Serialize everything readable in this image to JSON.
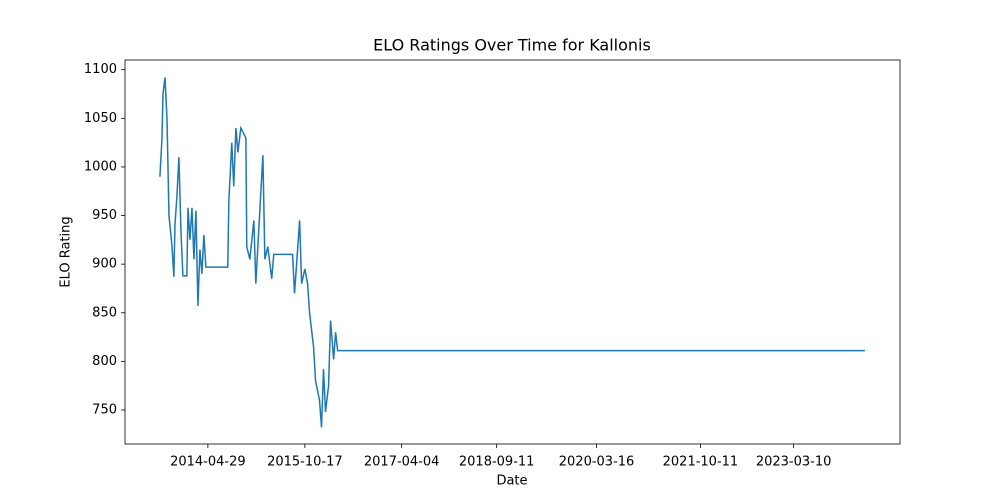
{
  "chart_data": {
    "type": "line",
    "title": "ELO Ratings Over Time for Kallonis",
    "xlabel": "Date",
    "ylabel": "ELO Rating",
    "x": [
      "2013-08-07",
      "2013-08-18",
      "2013-08-24",
      "2013-09-04",
      "2013-09-15",
      "2013-09-20",
      "2013-09-26",
      "2013-10-12",
      "2013-10-23",
      "2013-10-29",
      "2013-11-09",
      "2013-11-20",
      "2013-12-01",
      "2013-12-12",
      "2014-01-03",
      "2014-01-09",
      "2014-01-20",
      "2014-01-31",
      "2014-02-11",
      "2014-02-22",
      "2014-03-05",
      "2014-03-16",
      "2014-03-27",
      "2014-04-07",
      "2014-04-18",
      "2014-08-17",
      "2014-08-23",
      "2014-09-08",
      "2014-09-19",
      "2014-10-01",
      "2014-10-12",
      "2014-10-28",
      "2014-11-25",
      "2014-11-30",
      "2014-12-17",
      "2015-01-08",
      "2015-01-19",
      "2015-02-27",
      "2015-03-10",
      "2015-03-26",
      "2015-04-17",
      "2015-04-28",
      "2015-08-10",
      "2015-08-21",
      "2015-09-18",
      "2015-09-29",
      "2015-10-17",
      "2015-11-01",
      "2015-11-12",
      "2015-12-04",
      "2015-12-15",
      "2016-01-06",
      "2016-01-17",
      "2016-01-28",
      "2016-02-08",
      "2016-02-25",
      "2016-03-07",
      "2016-03-24",
      "2016-04-04",
      "2016-04-15",
      "2024-04-07"
    ],
    "series": [
      {
        "name": "Kallonis",
        "color": "#1f77b4",
        "values": [
          990,
          1028,
          1075,
          1092,
          1050,
          1005,
          950,
          920,
          887,
          940,
          970,
          1010,
          935,
          888,
          888,
          958,
          925,
          958,
          905,
          955,
          857,
          915,
          890,
          930,
          897,
          897,
          965,
          1025,
          980,
          1040,
          1015,
          1040,
          1030,
          918,
          905,
          945,
          880,
          1012,
          905,
          918,
          885,
          910,
          910,
          870,
          945,
          880,
          895,
          880,
          850,
          815,
          780,
          760,
          732,
          792,
          748,
          775,
          842,
          802,
          830,
          811,
          811
        ]
      }
    ],
    "xlim": [
      "2013-01-26",
      "2024-10-18"
    ],
    "xticks": [
      "2014-04-29",
      "2015-10-17",
      "2017-04-04",
      "2018-09-11",
      "2020-03-16",
      "2021-10-11",
      "2023-03-10"
    ],
    "ylim": [
      715,
      1110
    ],
    "yticks": [
      750,
      800,
      850,
      900,
      950,
      1000,
      1050,
      1100
    ]
  }
}
